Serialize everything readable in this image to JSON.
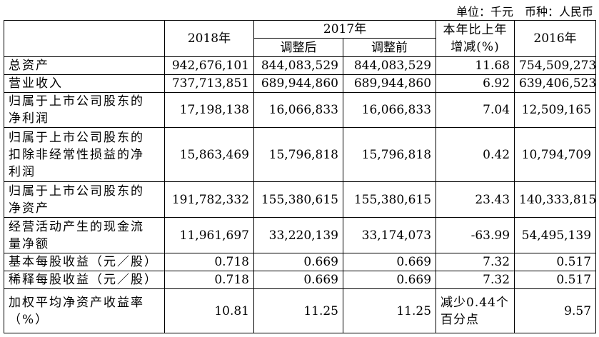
{
  "unit_note": "单位：千元　币种：人民币",
  "table": {
    "header": {
      "y2018": "2018年",
      "y2017": "2017年",
      "adjusted_after": "调整后",
      "adjusted_before": "调整前",
      "change": "本年比上年增减(%)",
      "y2016": "2016年"
    },
    "rows": [
      [
        "总资产",
        "942,676,101",
        "844,083,529",
        "844,083,529",
        "11.68",
        "754,509,273"
      ],
      [
        "营业收入",
        "737,713,851",
        "689,944,860",
        "689,944,860",
        "6.92",
        "639,406,523"
      ],
      [
        "归属于上市公司股东的净利润",
        "17,198,138",
        "16,066,833",
        "16,066,833",
        "7.04",
        "12,509,165"
      ],
      [
        "归属于上市公司股东的扣除非经常性损益的净利润",
        "15,863,469",
        "15,796,818",
        "15,796,818",
        "0.42",
        "10,794,709"
      ],
      [
        "归属于上市公司股东的净资产",
        "191,782,332",
        "155,380,615",
        "155,380,615",
        "23.43",
        "140,333,815"
      ],
      [
        "经营活动产生的现金流量净额",
        "11,961,697",
        "33,220,139",
        "33,174,073",
        "-63.99",
        "54,495,139"
      ],
      [
        "基本每股收益（元／股）",
        "0.718",
        "0.669",
        "0.669",
        "7.32",
        "0.517"
      ],
      [
        "稀释每股收益（元／股）",
        "0.718",
        "0.669",
        "0.669",
        "7.32",
        "0.517"
      ],
      [
        "加权平均净资产收益率（%）",
        "10.81",
        "11.25",
        "11.25",
        "减少0.44个百分点",
        "9.57"
      ]
    ]
  }
}
